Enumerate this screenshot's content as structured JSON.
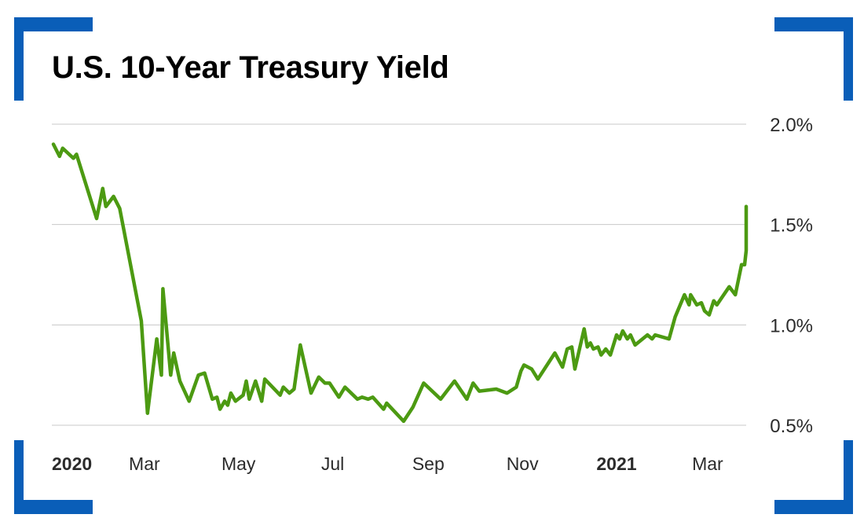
{
  "title": "U.S. 10-Year Treasury Yield",
  "colors": {
    "line": "#4c9a12",
    "grid": "#c8c8c8",
    "frame": "#0a5eb8",
    "text": "#2b2b2b"
  },
  "chart_data": {
    "type": "line",
    "title": "U.S. 10-Year Treasury Yield",
    "xlabel": "",
    "ylabel": "",
    "ylim": [
      0.5,
      2.0
    ],
    "yticks": [
      {
        "value": 0.5,
        "label": "0.5%"
      },
      {
        "value": 1.0,
        "label": "1.0%"
      },
      {
        "value": 1.5,
        "label": "1.5%"
      },
      {
        "value": 2.0,
        "label": "2.0%"
      }
    ],
    "xlim": [
      "2020-01-01",
      "2021-03-26"
    ],
    "xticks": [
      {
        "date": "2020-01-01",
        "label": "2020",
        "bold": true
      },
      {
        "date": "2020-03-01",
        "label": "Mar",
        "bold": false
      },
      {
        "date": "2020-05-01",
        "label": "May",
        "bold": false
      },
      {
        "date": "2020-07-01",
        "label": "Jul",
        "bold": false
      },
      {
        "date": "2020-09-01",
        "label": "Sep",
        "bold": false
      },
      {
        "date": "2020-11-01",
        "label": "Nov",
        "bold": false
      },
      {
        "date": "2021-01-01",
        "label": "2021",
        "bold": true
      },
      {
        "date": "2021-03-01",
        "label": "Mar",
        "bold": false
      }
    ],
    "grid": true,
    "legend": "none",
    "series": [
      {
        "points": [
          [
            "2020-01-02",
            1.9
          ],
          [
            "2020-01-06",
            1.84
          ],
          [
            "2020-01-08",
            1.88
          ],
          [
            "2020-01-15",
            1.83
          ],
          [
            "2020-01-17",
            1.85
          ],
          [
            "2020-01-30",
            1.53
          ],
          [
            "2020-02-03",
            1.68
          ],
          [
            "2020-02-05",
            1.59
          ],
          [
            "2020-02-10",
            1.64
          ],
          [
            "2020-02-14",
            1.58
          ],
          [
            "2020-02-20",
            1.34
          ],
          [
            "2020-02-28",
            1.02
          ],
          [
            "2020-03-03",
            0.56
          ],
          [
            "2020-03-09",
            0.93
          ],
          [
            "2020-03-12",
            0.75
          ],
          [
            "2020-03-13",
            1.18
          ],
          [
            "2020-03-18",
            0.75
          ],
          [
            "2020-03-20",
            0.86
          ],
          [
            "2020-03-24",
            0.72
          ],
          [
            "2020-03-30",
            0.62
          ],
          [
            "2020-04-05",
            0.75
          ],
          [
            "2020-04-09",
            0.76
          ],
          [
            "2020-04-14",
            0.63
          ],
          [
            "2020-04-17",
            0.64
          ],
          [
            "2020-04-19",
            0.58
          ],
          [
            "2020-04-22",
            0.62
          ],
          [
            "2020-04-24",
            0.6
          ],
          [
            "2020-04-26",
            0.66
          ],
          [
            "2020-04-29",
            0.62
          ],
          [
            "2020-05-04",
            0.65
          ],
          [
            "2020-05-06",
            0.72
          ],
          [
            "2020-05-08",
            0.63
          ],
          [
            "2020-05-12",
            0.72
          ],
          [
            "2020-05-16",
            0.62
          ],
          [
            "2020-05-18",
            0.73
          ],
          [
            "2020-05-28",
            0.65
          ],
          [
            "2020-05-30",
            0.69
          ],
          [
            "2020-06-03",
            0.66
          ],
          [
            "2020-06-06",
            0.68
          ],
          [
            "2020-06-10",
            0.9
          ],
          [
            "2020-06-17",
            0.66
          ],
          [
            "2020-06-22",
            0.74
          ],
          [
            "2020-06-26",
            0.71
          ],
          [
            "2020-06-29",
            0.71
          ],
          [
            "2020-07-05",
            0.64
          ],
          [
            "2020-07-09",
            0.69
          ],
          [
            "2020-07-17",
            0.63
          ],
          [
            "2020-07-20",
            0.64
          ],
          [
            "2020-07-24",
            0.63
          ],
          [
            "2020-07-27",
            0.64
          ],
          [
            "2020-08-03",
            0.58
          ],
          [
            "2020-08-05",
            0.61
          ],
          [
            "2020-08-16",
            0.52
          ],
          [
            "2020-08-22",
            0.59
          ],
          [
            "2020-08-29",
            0.71
          ],
          [
            "2020-09-09",
            0.63
          ],
          [
            "2020-09-18",
            0.72
          ],
          [
            "2020-09-26",
            0.63
          ],
          [
            "2020-09-30",
            0.71
          ],
          [
            "2020-10-04",
            0.67
          ],
          [
            "2020-10-15",
            0.68
          ],
          [
            "2020-10-22",
            0.66
          ],
          [
            "2020-10-28",
            0.69
          ],
          [
            "2020-10-31",
            0.77
          ],
          [
            "2020-11-02",
            0.8
          ],
          [
            "2020-11-07",
            0.78
          ],
          [
            "2020-11-11",
            0.73
          ],
          [
            "2020-11-22",
            0.86
          ],
          [
            "2020-11-27",
            0.79
          ],
          [
            "2020-11-30",
            0.88
          ],
          [
            "2020-12-03",
            0.89
          ],
          [
            "2020-12-05",
            0.78
          ],
          [
            "2020-12-11",
            0.98
          ],
          [
            "2020-12-13",
            0.89
          ],
          [
            "2020-12-15",
            0.91
          ],
          [
            "2020-12-17",
            0.88
          ],
          [
            "2020-12-20",
            0.89
          ],
          [
            "2020-12-22",
            0.85
          ],
          [
            "2020-12-25",
            0.88
          ],
          [
            "2020-12-28",
            0.85
          ],
          [
            "2021-01-01",
            0.95
          ],
          [
            "2021-01-03",
            0.93
          ],
          [
            "2021-01-05",
            0.97
          ],
          [
            "2021-01-08",
            0.93
          ],
          [
            "2021-01-10",
            0.95
          ],
          [
            "2021-01-13",
            0.9
          ],
          [
            "2021-01-21",
            0.95
          ],
          [
            "2021-01-24",
            0.93
          ],
          [
            "2021-01-26",
            0.95
          ],
          [
            "2021-02-04",
            0.93
          ],
          [
            "2021-02-08",
            1.04
          ],
          [
            "2021-02-14",
            1.15
          ],
          [
            "2021-02-17",
            1.1
          ],
          [
            "2021-02-18",
            1.15
          ],
          [
            "2021-02-22",
            1.1
          ],
          [
            "2021-02-25",
            1.11
          ],
          [
            "2021-02-27",
            1.07
          ],
          [
            "2021-03-02",
            1.05
          ],
          [
            "2021-03-05",
            1.12
          ],
          [
            "2021-03-07",
            1.1
          ],
          [
            "2021-03-15",
            1.19
          ],
          [
            "2021-03-19",
            1.15
          ],
          [
            "2021-03-23",
            1.3
          ],
          [
            "2021-03-25",
            1.3
          ],
          [
            "2021-03-28",
            1.37
          ],
          [
            "2021-03-30",
            1.4
          ],
          [
            "2021-04-01",
            1.56
          ],
          [
            "2021-04-03",
            1.4
          ],
          [
            "2021-04-07",
            1.5
          ],
          [
            "2021-04-09",
            1.55
          ],
          [
            "2021-04-14",
            1.59
          ],
          [
            "2021-04-17",
            1.55
          ]
        ]
      }
    ]
  }
}
